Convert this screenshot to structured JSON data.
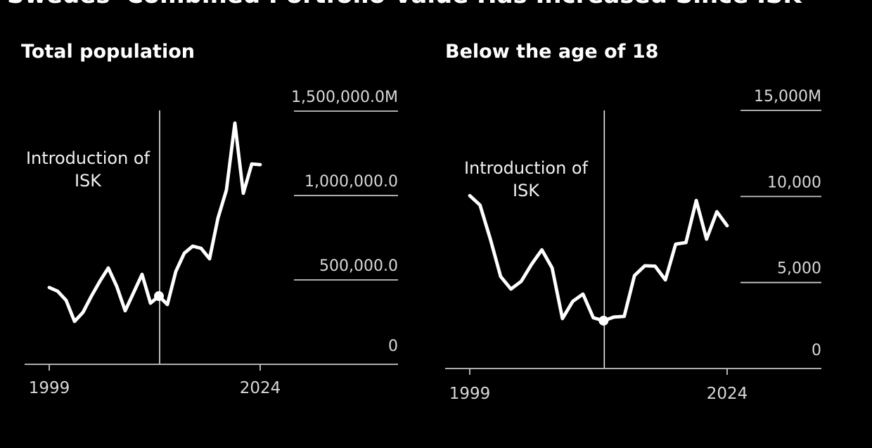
{
  "page": {
    "title": "Swedes' Combined Portfolio Value Has Increased Since ISK",
    "background_color": "#000000"
  },
  "colors": {
    "series_line": "#ffffff",
    "event_line": "#e8e8e8",
    "axis": "#c4c4c4",
    "tick_label": "#d8d8d8",
    "annotation_text": "#f2f2f2",
    "subtitle_text": "#ffffff"
  },
  "chart_data": [
    {
      "type": "line",
      "title": "Total population",
      "xlabel": "",
      "ylabel": "",
      "x": [
        1999,
        2000,
        2001,
        2002,
        2003,
        2004,
        2005,
        2006,
        2007,
        2008,
        2009,
        2010,
        2011,
        2012,
        2013,
        2014,
        2015,
        2016,
        2017,
        2018,
        2019,
        2020,
        2021,
        2022,
        2023,
        2024
      ],
      "values": [
        455000,
        433000,
        379000,
        254000,
        308000,
        404000,
        492000,
        571000,
        462000,
        317000,
        425000,
        533000,
        362000,
        404000,
        354000,
        550000,
        658000,
        700000,
        687000,
        625000,
        867000,
        1033000,
        1429000,
        1013000,
        1187000,
        1183000
      ],
      "ylim": [
        0,
        1500000
      ],
      "xlim": [
        1999,
        2024
      ],
      "grid": "right-segments",
      "legend": "none",
      "y_ticks": [
        {
          "value": 1500000,
          "label": "1,500,000.0M"
        },
        {
          "value": 1000000,
          "label": "1,000,000.0"
        },
        {
          "value": 500000,
          "label": "500,000.0"
        },
        {
          "value": 0,
          "label": "0"
        }
      ],
      "x_ticks": [
        {
          "year": 1999,
          "label": "1999"
        },
        {
          "year": 2024,
          "label": "2024"
        }
      ],
      "annotation": {
        "line1": "Introduction of",
        "line2": "ISK",
        "event_year": 2012
      },
      "marker": {
        "year": 2012,
        "value": 404000
      }
    },
    {
      "type": "line",
      "title": "Below the age of 18",
      "xlabel": "",
      "ylabel": "",
      "x": [
        1999,
        2000,
        2001,
        2002,
        2003,
        2004,
        2005,
        2006,
        2007,
        2008,
        2009,
        2010,
        2011,
        2012,
        2013,
        2014,
        2015,
        2016,
        2017,
        2018,
        2019,
        2020,
        2021,
        2022,
        2023,
        2024
      ],
      "values": [
        10050,
        9500,
        7520,
        5350,
        4620,
        5070,
        6050,
        6900,
        5850,
        2900,
        3900,
        4330,
        2950,
        2780,
        2990,
        3030,
        5400,
        5970,
        5950,
        5150,
        7230,
        7320,
        9770,
        7520,
        9115,
        8300
      ],
      "ylim": [
        0,
        15000
      ],
      "xlim": [
        1999,
        2024
      ],
      "grid": "right-segments",
      "legend": "none",
      "y_ticks": [
        {
          "value": 15000,
          "label": "15,000M"
        },
        {
          "value": 10000,
          "label": "10,000"
        },
        {
          "value": 5000,
          "label": "5,000"
        },
        {
          "value": 0,
          "label": "0"
        }
      ],
      "x_ticks": [
        {
          "year": 1999,
          "label": "1999"
        },
        {
          "year": 2024,
          "label": "2024"
        }
      ],
      "annotation": {
        "line1": "Introduction of",
        "line2": "ISK",
        "event_year": 2012
      },
      "marker": {
        "year": 2012,
        "value": 2780
      }
    }
  ]
}
